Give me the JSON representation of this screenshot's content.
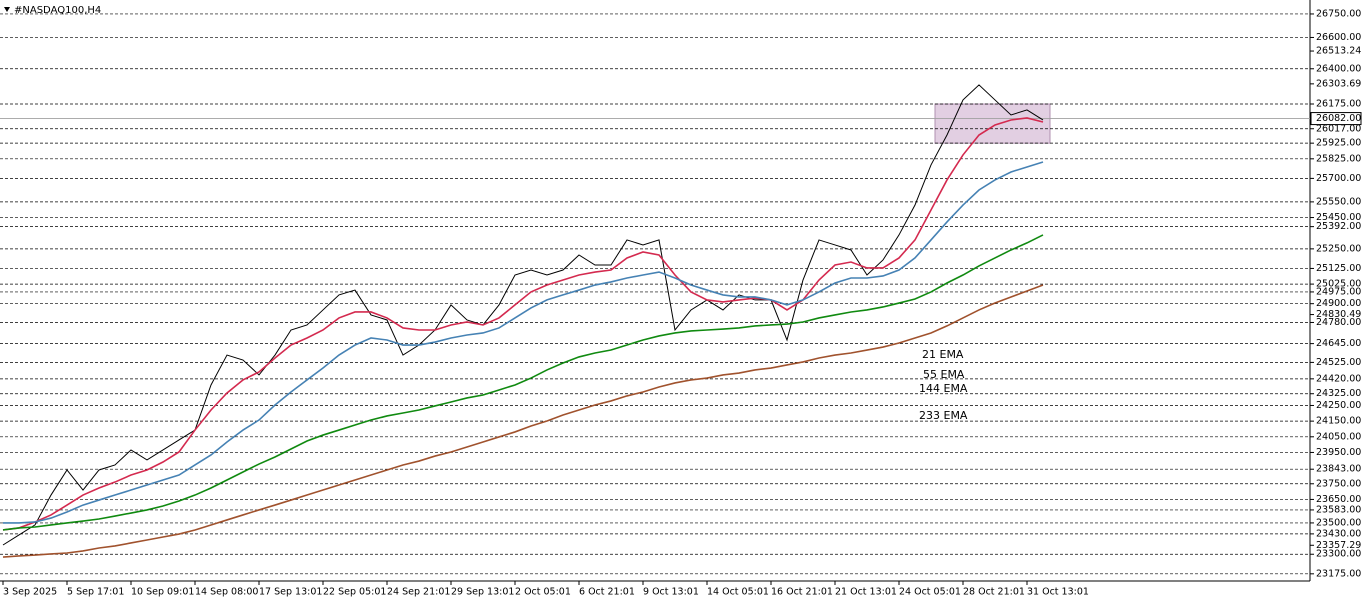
{
  "chart_data": {
    "type": "line",
    "title": "#NASDAQ100,H4",
    "categories": [
      "3 Sep 2025",
      null,
      null,
      null,
      "5 Sep 17:01",
      null,
      null,
      null,
      "10 Sep 09:01",
      null,
      null,
      null,
      "14 Sep 08:00",
      null,
      null,
      null,
      "17 Sep 13:01",
      null,
      null,
      null,
      "22 Sep 05:01",
      null,
      null,
      null,
      "24 Sep 21:01",
      null,
      null,
      null,
      "29 Sep 13:01",
      null,
      null,
      null,
      "2 Oct 05:01",
      null,
      null,
      null,
      "6 Oct 21:01",
      null,
      null,
      null,
      "9 Oct 13:01",
      null,
      null,
      null,
      "14 Oct 05:01",
      null,
      null,
      null,
      "16 Oct 21:01",
      null,
      null,
      null,
      "21 Oct 13:01",
      null,
      null,
      null,
      "24 Oct 05:01",
      null,
      null,
      null,
      "28 Oct 21:01",
      null,
      null,
      null,
      "31 Oct 13:01",
      null
    ],
    "series": [
      {
        "color": "#000000",
        "values": [
          23359,
          23423,
          23487,
          23678,
          23838,
          23710,
          23838,
          23870,
          23966,
          23902,
          23966,
          24030,
          24093,
          24381,
          24572,
          24540,
          24445,
          24572,
          24732,
          24764,
          24860,
          24956,
          24987,
          24828,
          24796,
          24572,
          24636,
          24732,
          24892,
          24796,
          24764,
          24892,
          25083,
          25115,
          25083,
          25115,
          25211,
          25147,
          25147,
          25307,
          25275,
          25307,
          24732,
          24860,
          24924,
          24860,
          24956,
          24924,
          24924,
          24668,
          25051,
          25307,
          25275,
          25243,
          25083,
          25179,
          25339,
          25530,
          25786,
          25977,
          26201,
          26297,
          26201,
          26105,
          26137,
          26073
        ]
      },
      {
        "name": "21 EMA",
        "color": "#d42a4f",
        "values": [
          23455,
          23468,
          23506,
          23551,
          23614,
          23678,
          23723,
          23761,
          23806,
          23838,
          23889,
          23953,
          24093,
          24221,
          24330,
          24413,
          24464,
          24553,
          24636,
          24681,
          24732,
          24809,
          24847,
          24847,
          24809,
          24745,
          24732,
          24732,
          24764,
          24783,
          24764,
          24809,
          24892,
          24975,
          25019,
          25051,
          25083,
          25102,
          25115,
          25192,
          25230,
          25211,
          25083,
          24975,
          24924,
          24911,
          24924,
          24936,
          24924,
          24860,
          24924,
          25051,
          25147,
          25166,
          25128,
          25128,
          25192,
          25307,
          25498,
          25690,
          25850,
          25977,
          26041,
          26073,
          26086,
          26060
        ]
      },
      {
        "name": "55 EMA",
        "color": "#4682b4",
        "values": [
          23500,
          23500,
          23506,
          23531,
          23570,
          23614,
          23646,
          23678,
          23710,
          23742,
          23774,
          23806,
          23870,
          23934,
          24017,
          24093,
          24157,
          24253,
          24336,
          24413,
          24489,
          24572,
          24636,
          24681,
          24668,
          24636,
          24636,
          24655,
          24681,
          24700,
          24713,
          24745,
          24809,
          24873,
          24924,
          24956,
          24987,
          25019,
          25039,
          25064,
          25083,
          25102,
          25064,
          25019,
          24987,
          24956,
          24943,
          24943,
          24924,
          24892,
          24924,
          24975,
          25032,
          25064,
          25064,
          25077,
          25115,
          25192,
          25307,
          25422,
          25530,
          25626,
          25690,
          25741,
          25773,
          25805
        ]
      },
      {
        "name": "144 EMA",
        "color": "#108a10",
        "values": [
          23455,
          23468,
          23474,
          23487,
          23500,
          23512,
          23525,
          23544,
          23563,
          23583,
          23608,
          23640,
          23678,
          23723,
          23774,
          23825,
          23876,
          23921,
          23972,
          24023,
          24061,
          24093,
          24125,
          24157,
          24183,
          24202,
          24221,
          24247,
          24272,
          24298,
          24317,
          24349,
          24381,
          24425,
          24477,
          24521,
          24560,
          24585,
          24604,
          24636,
          24668,
          24694,
          24713,
          24726,
          24732,
          24738,
          24745,
          24758,
          24764,
          24770,
          24783,
          24809,
          24828,
          24847,
          24860,
          24879,
          24904,
          24930,
          24975,
          25032,
          25083,
          25141,
          25192,
          25243,
          25288,
          25339
        ]
      },
      {
        "name": "233 EMA",
        "color": "#a0522d",
        "values": [
          23282,
          23289,
          23295,
          23302,
          23308,
          23321,
          23340,
          23353,
          23372,
          23391,
          23410,
          23429,
          23455,
          23487,
          23519,
          23551,
          23583,
          23614,
          23646,
          23678,
          23710,
          23742,
          23774,
          23806,
          23838,
          23870,
          23895,
          23927,
          23953,
          23985,
          24017,
          24049,
          24081,
          24119,
          24151,
          24189,
          24221,
          24253,
          24279,
          24311,
          24336,
          24368,
          24394,
          24413,
          24425,
          24445,
          24457,
          24477,
          24489,
          24509,
          24528,
          24553,
          24572,
          24585,
          24604,
          24623,
          24649,
          24681,
          24713,
          24758,
          24809,
          24860,
          24904,
          24943,
          24981,
          25019
        ]
      }
    ],
    "ylim": [
      23140,
      26820
    ],
    "yticks": [
      {
        "value": 26750,
        "label": "26750.00"
      },
      {
        "value": 26600,
        "label": "26600.00"
      },
      {
        "value": 26513.24,
        "label": "26513.24"
      },
      {
        "value": 26400,
        "label": "26400.00"
      },
      {
        "value": 26303.69,
        "label": "26303.69"
      },
      {
        "value": 26175,
        "label": "26175.00"
      },
      {
        "value": 26017,
        "label": "26017.00"
      },
      {
        "value": 25925,
        "label": "25925.00"
      },
      {
        "value": 25825,
        "label": "25825.00"
      },
      {
        "value": 25700,
        "label": "25700.00"
      },
      {
        "value": 25550,
        "label": "25550.00"
      },
      {
        "value": 25450,
        "label": "25450.00"
      },
      {
        "value": 25392,
        "label": "25392.00"
      },
      {
        "value": 25250,
        "label": "25250.00"
      },
      {
        "value": 25125,
        "label": "25125.00"
      },
      {
        "value": 25025,
        "label": "25025.00"
      },
      {
        "value": 24975,
        "label": "24975.00"
      },
      {
        "value": 24900,
        "label": "24900.00"
      },
      {
        "value": 24830.49,
        "label": "24830.49"
      },
      {
        "value": 24780,
        "label": "24780.00"
      },
      {
        "value": 24645,
        "label": "24645.00"
      },
      {
        "value": 24525,
        "label": "24525.00"
      },
      {
        "value": 24420,
        "label": "24420.00"
      },
      {
        "value": 24325,
        "label": "24325.00"
      },
      {
        "value": 24250,
        "label": "24250.00"
      },
      {
        "value": 24150,
        "label": "24150.00"
      },
      {
        "value": 24050,
        "label": "24050.00"
      },
      {
        "value": 23950,
        "label": "23950.00"
      },
      {
        "value": 23843,
        "label": "23843.00"
      },
      {
        "value": 23750,
        "label": "23750.00"
      },
      {
        "value": 23650,
        "label": "23650.00"
      },
      {
        "value": 23583,
        "label": "23583.00"
      },
      {
        "value": 23500,
        "label": "23500.00"
      },
      {
        "value": 23430,
        "label": "23430.00"
      },
      {
        "value": 23357.29,
        "label": "23357.29"
      },
      {
        "value": 23300,
        "label": "23300.00"
      },
      {
        "value": 23175,
        "label": "23175.00"
      }
    ],
    "levels": [
      26750,
      26600,
      26400,
      26175,
      26017,
      25925,
      25825,
      25700,
      25550,
      25450,
      25392,
      25250,
      25125,
      25025,
      24975,
      24900,
      24780,
      24645,
      24525,
      24420,
      24325,
      24250,
      24150,
      24050,
      23950,
      23843,
      23750,
      23650,
      23583,
      23500,
      23430,
      23300,
      23175
    ],
    "last_price": {
      "value": 26082,
      "label": "26082.00"
    },
    "zone": {
      "top": 26175,
      "bottom": 25925,
      "color": "#d8bfd8"
    }
  }
}
